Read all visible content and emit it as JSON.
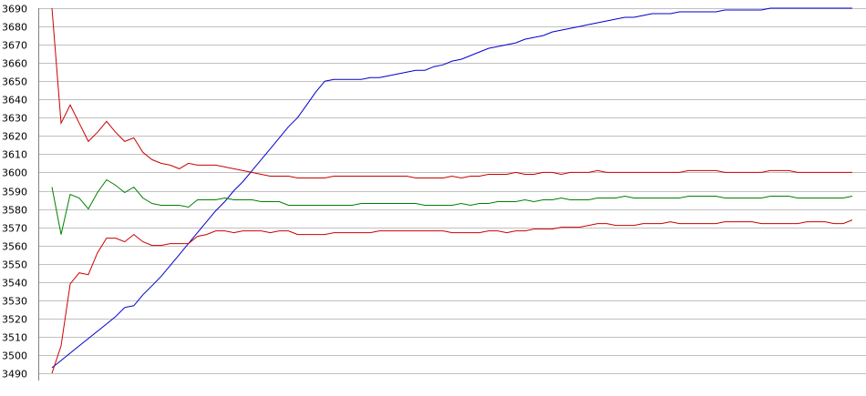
{
  "chart_data": {
    "type": "line",
    "title": "",
    "xlabel": "",
    "ylabel": "",
    "ylim": [
      3490,
      3690
    ],
    "xlim": [
      0,
      88
    ],
    "y_ticks": [
      "3690",
      "3680",
      "3670",
      "3660",
      "3650",
      "3640",
      "3630",
      "3620",
      "3610",
      "3600",
      "3590",
      "3580",
      "3570",
      "3560",
      "3550",
      "3540",
      "3530",
      "3520",
      "3510",
      "3500",
      "3490"
    ],
    "grid": true,
    "legend": "none",
    "colors": {
      "blue": "#0000cc",
      "upper_red": "#cc0000",
      "green": "#008000",
      "lower_red": "#cc0000",
      "grid": "#c0c0c0"
    },
    "series": [
      {
        "key": "blue",
        "values": [
          3493,
          3497,
          3501,
          3505,
          3509,
          3513,
          3517,
          3521,
          3526,
          3527,
          3533,
          3538,
          3543,
          3549,
          3555,
          3561,
          3567,
          3573,
          3579,
          3584,
          3590,
          3595,
          3601,
          3607,
          3613,
          3619,
          3625,
          3630,
          3637,
          3644,
          3650,
          3651,
          3651,
          3651,
          3651,
          3652,
          3652,
          3653,
          3654,
          3655,
          3656,
          3656,
          3658,
          3659,
          3661,
          3662,
          3664,
          3666,
          3668,
          3669,
          3670,
          3671,
          3673,
          3674,
          3675,
          3677,
          3678,
          3679,
          3680,
          3681,
          3682,
          3683,
          3684,
          3685,
          3685,
          3686,
          3687,
          3687,
          3687,
          3688,
          3688,
          3688,
          3688,
          3688,
          3689,
          3689,
          3689,
          3689,
          3689,
          3690,
          3690,
          3690,
          3690,
          3690,
          3690,
          3690,
          3690,
          3690,
          3690
        ]
      },
      {
        "key": "upper_red",
        "values": [
          3690,
          3627,
          3637,
          3627,
          3617,
          3622,
          3628,
          3622,
          3617,
          3619,
          3611,
          3607,
          3605,
          3604,
          3602,
          3605,
          3604,
          3604,
          3604,
          3603,
          3602,
          3601,
          3600,
          3599,
          3598,
          3598,
          3598,
          3597,
          3597,
          3597,
          3597,
          3598,
          3598,
          3598,
          3598,
          3598,
          3598,
          3598,
          3598,
          3598,
          3597,
          3597,
          3597,
          3597,
          3598,
          3597,
          3598,
          3598,
          3599,
          3599,
          3599,
          3600,
          3599,
          3599,
          3600,
          3600,
          3599,
          3600,
          3600,
          3600,
          3601,
          3600,
          3600,
          3600,
          3600,
          3600,
          3600,
          3600,
          3600,
          3600,
          3601,
          3601,
          3601,
          3601,
          3600,
          3600,
          3600,
          3600,
          3600,
          3601,
          3601,
          3601,
          3600,
          3600,
          3600,
          3600,
          3600,
          3600,
          3600
        ]
      },
      {
        "key": "green",
        "values": [
          3592,
          3566,
          3588,
          3586,
          3580,
          3589,
          3596,
          3593,
          3589,
          3592,
          3586,
          3583,
          3582,
          3582,
          3582,
          3581,
          3585,
          3585,
          3585,
          3586,
          3585,
          3585,
          3585,
          3584,
          3584,
          3584,
          3582,
          3582,
          3582,
          3582,
          3582,
          3582,
          3582,
          3582,
          3583,
          3583,
          3583,
          3583,
          3583,
          3583,
          3583,
          3582,
          3582,
          3582,
          3582,
          3583,
          3582,
          3583,
          3583,
          3584,
          3584,
          3584,
          3585,
          3584,
          3585,
          3585,
          3586,
          3585,
          3585,
          3585,
          3586,
          3586,
          3586,
          3587,
          3586,
          3586,
          3586,
          3586,
          3586,
          3586,
          3587,
          3587,
          3587,
          3587,
          3586,
          3586,
          3586,
          3586,
          3586,
          3587,
          3587,
          3587,
          3586,
          3586,
          3586,
          3586,
          3586,
          3586,
          3587
        ]
      },
      {
        "key": "lower_red",
        "values": [
          3490,
          3505,
          3539,
          3545,
          3544,
          3556,
          3564,
          3564,
          3562,
          3566,
          3562,
          3560,
          3560,
          3561,
          3561,
          3561,
          3565,
          3566,
          3568,
          3568,
          3567,
          3568,
          3568,
          3568,
          3567,
          3568,
          3568,
          3566,
          3566,
          3566,
          3566,
          3567,
          3567,
          3567,
          3567,
          3567,
          3568,
          3568,
          3568,
          3568,
          3568,
          3568,
          3568,
          3568,
          3567,
          3567,
          3567,
          3567,
          3568,
          3568,
          3567,
          3568,
          3568,
          3569,
          3569,
          3569,
          3570,
          3570,
          3570,
          3571,
          3572,
          3572,
          3571,
          3571,
          3571,
          3572,
          3572,
          3572,
          3573,
          3572,
          3572,
          3572,
          3572,
          3572,
          3573,
          3573,
          3573,
          3573,
          3572,
          3572,
          3572,
          3572,
          3572,
          3573,
          3573,
          3573,
          3572,
          3572,
          3574
        ]
      }
    ]
  }
}
